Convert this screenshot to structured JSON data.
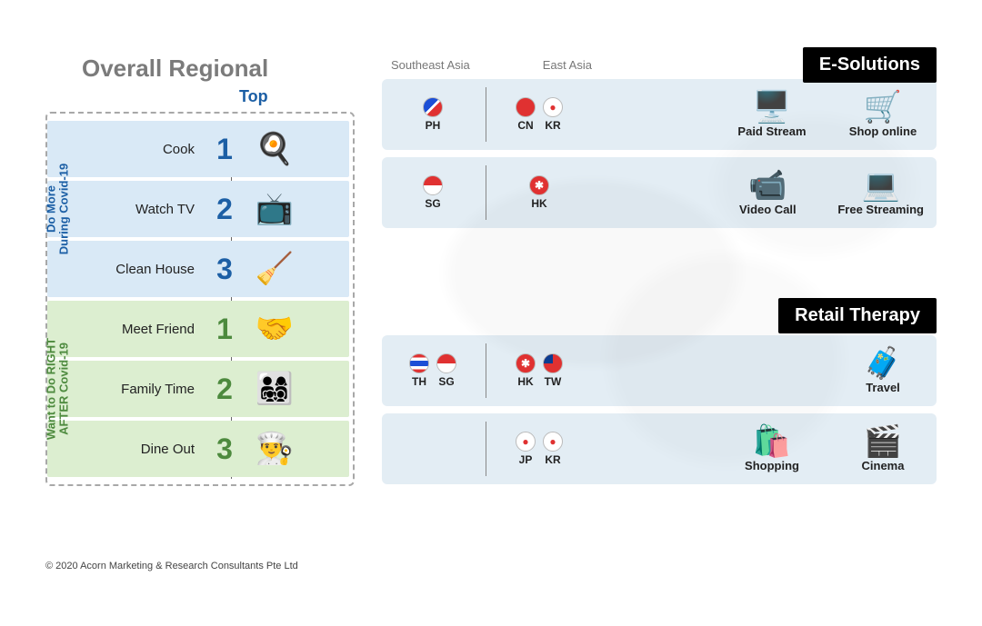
{
  "title": "Overall Regional",
  "top_label": "Top",
  "copyright": "© 2020 Acorn Marketing & Research Consultants Pte Ltd",
  "sections": {
    "during": {
      "vlabel_line1": "Do More",
      "vlabel_line2": "During Covid-19",
      "color": "#1c5fa5",
      "bg": "#d9e9f6",
      "rows": [
        {
          "activity": "Cook",
          "rank": "1",
          "icon": "🍳"
        },
        {
          "activity": "Watch TV",
          "rank": "2",
          "icon": "📺"
        },
        {
          "activity": "Clean House",
          "rank": "3",
          "icon": "🧹"
        }
      ]
    },
    "after": {
      "vlabel_line1": "Want to Do RIGHT",
      "vlabel_line2": "AFTER Covid-19",
      "color": "#4d8a3e",
      "bg": "#dceed0",
      "rows": [
        {
          "activity": "Meet Friend",
          "rank": "1",
          "icon": "🤝"
        },
        {
          "activity": "Family Time",
          "rank": "2",
          "icon": "👨‍👩‍👧‍👦"
        },
        {
          "activity": "Dine Out",
          "rank": "3",
          "icon": "👨‍🍳"
        }
      ]
    }
  },
  "region_headers": {
    "sea": "Southeast Asia",
    "ea": "East Asia"
  },
  "banners": {
    "esolutions": "E-Solutions",
    "retail": "Retail Therapy"
  },
  "flags": {
    "PH": {
      "code": "PH",
      "bg": "#ffffff",
      "overlay": "half-blue-bottom half-red",
      "dot_style": "background:linear-gradient(135deg,#1c4fd6 0 45%,#ffffff 45% 55%,#e03131 55%);"
    },
    "SG": {
      "code": "SG",
      "dot_style": "background:linear-gradient(#e03131 0 50%,#ffffff 50%);"
    },
    "CN": {
      "code": "CN",
      "dot_style": "background:#e03131;"
    },
    "KR": {
      "code": "KR",
      "dot_style": "background:#ffffff;",
      "inner": "●",
      "inner_color": "#e03131"
    },
    "HK": {
      "code": "HK",
      "dot_style": "background:#e03131;",
      "inner": "✱",
      "inner_color": "#ffffff"
    },
    "TH": {
      "code": "TH",
      "dot_style": "background:linear-gradient(#e03131 0 18%,#ffffff 18% 36%,#1c4fd6 36% 64%,#ffffff 64% 82%,#e03131 82%);"
    },
    "TW": {
      "code": "TW",
      "dot_style": "background:#e03131;",
      "corner": "#0b3d91"
    },
    "JP": {
      "code": "JP",
      "dot_style": "background:#ffffff;",
      "inner": "●",
      "inner_color": "#e03131"
    }
  },
  "esolutions_rows": [
    {
      "sea": [
        "PH"
      ],
      "ea": [
        "CN",
        "KR"
      ],
      "services": [
        {
          "label": "Paid Stream",
          "icon": "🖥️"
        },
        {
          "label": "Shop online",
          "icon": "🛒"
        }
      ]
    },
    {
      "sea": [
        "SG"
      ],
      "ea": [
        "HK"
      ],
      "services": [
        {
          "label": "Video Call",
          "icon": "📹"
        },
        {
          "label": "Free Streaming",
          "icon": "💻"
        }
      ]
    }
  ],
  "retail_rows": [
    {
      "sea": [
        "TH",
        "SG"
      ],
      "ea": [
        "HK",
        "TW"
      ],
      "services": [
        {
          "label": "Travel",
          "icon": "🧳"
        }
      ]
    },
    {
      "sea": [],
      "ea": [
        "JP",
        "KR"
      ],
      "services": [
        {
          "label": "Shopping",
          "icon": "🛍️"
        },
        {
          "label": "Cinema",
          "icon": "🎬"
        }
      ]
    }
  ],
  "style": {
    "row_bg": "#e3edf4",
    "banner_bg": "#000000",
    "banner_fg": "#ffffff",
    "title_color": "#7b7b7b"
  }
}
